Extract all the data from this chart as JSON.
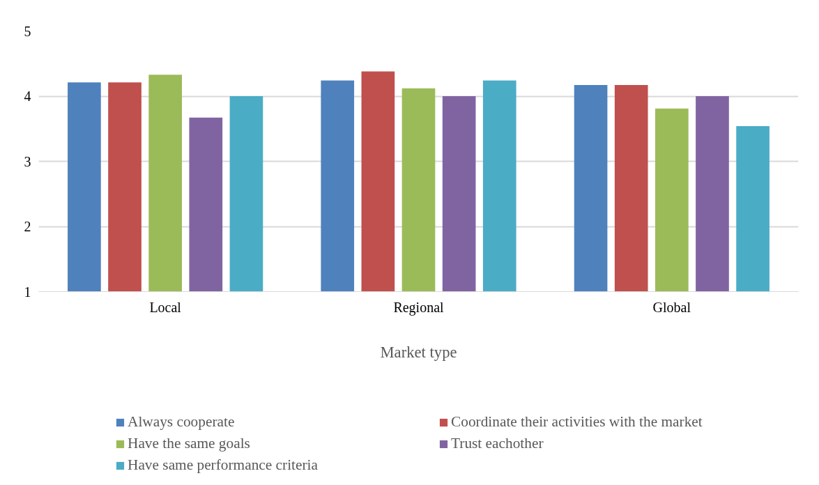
{
  "chart_data": {
    "type": "bar",
    "xlabel": "Market type",
    "categories": [
      "Local",
      "Regional",
      "Global"
    ],
    "series": [
      {
        "name": "Always cooperate",
        "color": "#4f81bd",
        "values": [
          4.21,
          4.24,
          4.17
        ]
      },
      {
        "name": "Coordinate their activities with the market",
        "color": "#c0504d",
        "values": [
          4.21,
          4.38,
          4.17
        ]
      },
      {
        "name": "Have the same goals",
        "color": "#9bbb59",
        "values": [
          4.33,
          4.12,
          3.81
        ]
      },
      {
        "name": "Trust eachother",
        "color": "#8064a2",
        "values": [
          3.67,
          4.0,
          4.0
        ]
      },
      {
        "name": "Have same performance criteria",
        "color": "#4bacc6",
        "values": [
          4.0,
          4.24,
          3.54
        ]
      }
    ],
    "ylim": [
      1,
      5
    ],
    "yticks": [
      1,
      2,
      3,
      4,
      5
    ],
    "grid": "y",
    "legend": "bottom"
  }
}
